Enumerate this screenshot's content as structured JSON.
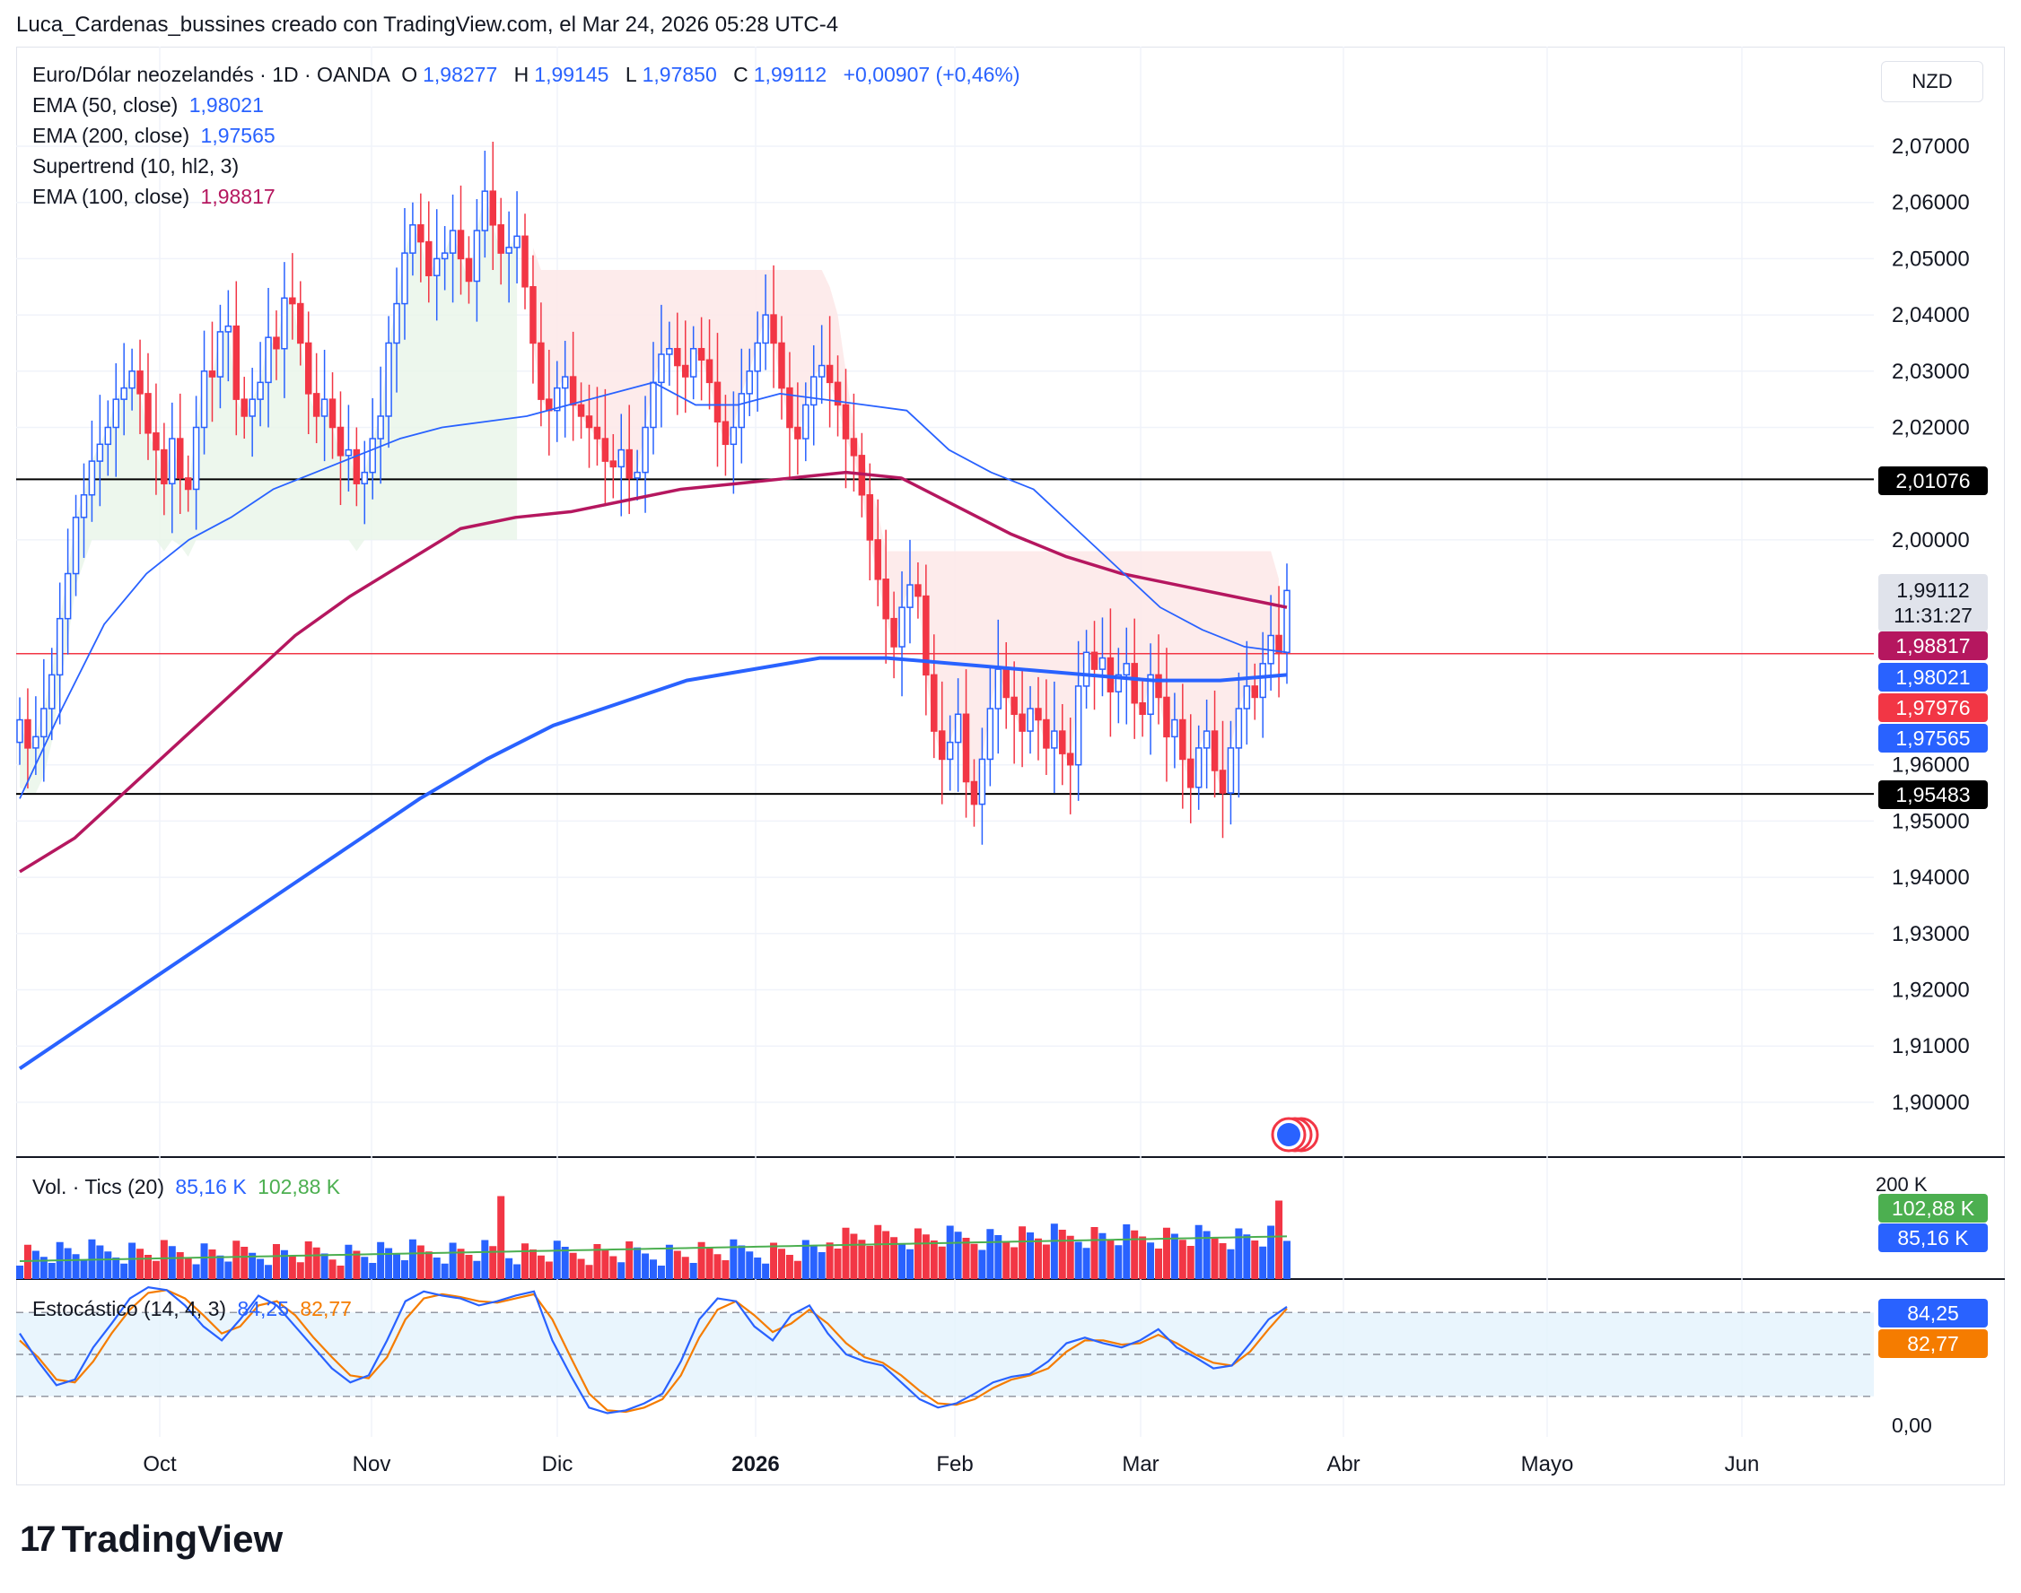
{
  "header": {
    "text": "Luca_Cardenas_bussines creado con TradingView.com, el Mar 24, 2026 05:28 UTC-4"
  },
  "currency": "NZD",
  "legend": {
    "symbol": "Euro/Dólar neozelandés · 1D · OANDA",
    "o_label": "O",
    "o_value": "1,98277",
    "h_label": "H",
    "h_value": "1,99145",
    "l_label": "L",
    "l_value": "1,97850",
    "c_label": "C",
    "c_value": "1,99112",
    "change": "+0,00907 (+0,46%)",
    "ema50_label": "EMA (50, close)",
    "ema50_value": "1,98021",
    "ema200_label": "EMA (200, close)",
    "ema200_value": "1,97565",
    "supertrend_label": "Supertrend (10, hl2, 3)",
    "ema100_label": "EMA (100, close)",
    "ema100_value": "1,98817"
  },
  "volume_legend": {
    "label": "Vol. · Tics (20)",
    "v1": "85,16 K",
    "v2": "102,88 K"
  },
  "stoch_legend": {
    "label": "Estocástico (14, 4, 3)",
    "k": "84,25",
    "d": "82,77"
  },
  "price_labels": {
    "hline_top": "2,01076",
    "last": "1,99112",
    "countdown": "11:31:27",
    "ema100": "1,98817",
    "ema50": "1,98021",
    "level_red": "1,97976",
    "ema200": "1,97565",
    "hline_bottom": "1,95483"
  },
  "volume_scale": {
    "top": "200 K",
    "ma": "102,88 K",
    "last": "85,16 K"
  },
  "stoch_scale": {
    "k": "84,25",
    "d": "82,77",
    "zero": "0,00"
  },
  "brand": "TradingView",
  "colors": {
    "up": "#2962ff",
    "down": "#f23645",
    "ema50": "#2962ff",
    "ema200": "#2962ff",
    "ema100": "#b5175f",
    "st_up": "#e8f5e9",
    "st_down": "#fde8e8",
    "stoch_k": "#2962ff",
    "stoch_d": "#f57c00"
  },
  "chart_data": {
    "type": "candlestick",
    "y_ticks": [
      "2,07000",
      "2,06000",
      "2,05000",
      "2,04000",
      "2,03000",
      "2,02000",
      "2,00000",
      "1,96000",
      "1,95000",
      "1,94000",
      "1,93000",
      "1,92000",
      "1,91000",
      "1,90000"
    ],
    "y_tick_values": [
      2.07,
      2.06,
      2.05,
      2.04,
      2.03,
      2.02,
      2.0,
      1.96,
      1.95,
      1.94,
      1.93,
      1.92,
      1.91,
      1.9
    ],
    "x_ticks": [
      "Oct",
      "Nov",
      "Dic",
      "2026",
      "Feb",
      "Mar",
      "Abr",
      "Mayo",
      "Jun"
    ],
    "horizontal_lines": [
      2.01076,
      1.95483,
      1.97976
    ],
    "closes": [
      1.968,
      1.963,
      1.965,
      1.97,
      1.976,
      1.986,
      1.994,
      2.004,
      2.008,
      2.014,
      2.017,
      2.02,
      2.025,
      2.027,
      2.03,
      2.026,
      2.019,
      2.016,
      2.01,
      2.018,
      2.011,
      2.009,
      2.02,
      2.03,
      2.029,
      2.037,
      2.038,
      2.025,
      2.022,
      2.025,
      2.028,
      2.036,
      2.034,
      2.043,
      2.042,
      2.035,
      2.026,
      2.022,
      2.025,
      2.02,
      2.015,
      2.016,
      2.01,
      2.012,
      2.018,
      2.022,
      2.035,
      2.042,
      2.051,
      2.056,
      2.053,
      2.047,
      2.05,
      2.051,
      2.055,
      2.05,
      2.046,
      2.055,
      2.062,
      2.056,
      2.051,
      2.052,
      2.054,
      2.045,
      2.035,
      2.025,
      2.023,
      2.027,
      2.029,
      2.024,
      2.022,
      2.02,
      2.018,
      2.014,
      2.013,
      2.016,
      2.011,
      2.012,
      2.02,
      2.028,
      2.033,
      2.034,
      2.031,
      2.029,
      2.034,
      2.032,
      2.028,
      2.021,
      2.017,
      2.02,
      2.026,
      2.03,
      2.035,
      2.04,
      2.035,
      2.027,
      2.02,
      2.018,
      2.024,
      2.029,
      2.031,
      2.028,
      2.024,
      2.018,
      2.015,
      2.008,
      2.0,
      1.993,
      1.986,
      1.981,
      1.988,
      1.992,
      1.99,
      1.976,
      1.966,
      1.961,
      1.964,
      1.969,
      1.957,
      1.953,
      1.961,
      1.97,
      1.977,
      1.972,
      1.969,
      1.966,
      1.97,
      1.968,
      1.963,
      1.966,
      1.962,
      1.96,
      1.974,
      1.98,
      1.977,
      1.979,
      1.973,
      1.976,
      1.978,
      1.971,
      1.969,
      1.976,
      1.972,
      1.965,
      1.968,
      1.961,
      1.956,
      1.963,
      1.966,
      1.959,
      1.955,
      1.963,
      1.97,
      1.974,
      1.972,
      1.978,
      1.983,
      1.98,
      1.991
    ],
    "ema50": [
      1.954,
      1.97,
      1.985,
      1.994,
      2.0,
      2.004,
      2.009,
      2.012,
      2.015,
      2.018,
      2.02,
      2.021,
      2.022,
      2.024,
      2.026,
      2.028,
      2.024,
      2.024,
      2.026,
      2.025,
      2.024,
      2.023,
      2.016,
      2.012,
      2.009,
      2.002,
      1.995,
      1.988,
      1.984,
      1.981,
      1.98
    ],
    "ema100": [
      1.941,
      1.947,
      1.956,
      1.965,
      1.974,
      1.983,
      1.99,
      1.996,
      2.002,
      2.004,
      2.005,
      2.007,
      2.009,
      2.01,
      2.011,
      2.012,
      2.011,
      2.006,
      2.001,
      1.997,
      1.994,
      1.992,
      1.99,
      1.988
    ],
    "ema200": [
      1.906,
      1.914,
      1.922,
      1.93,
      1.938,
      1.946,
      1.954,
      1.961,
      1.967,
      1.971,
      1.975,
      1.977,
      1.979,
      1.979,
      1.978,
      1.977,
      1.976,
      1.975,
      1.975,
      1.976
    ],
    "volume_max": 200000,
    "stoch_k": [
      65,
      45,
      28,
      32,
      55,
      72,
      90,
      98,
      96,
      85,
      70,
      60,
      75,
      92,
      85,
      70,
      55,
      40,
      30,
      35,
      60,
      88,
      95,
      92,
      90,
      85,
      88,
      92,
      95,
      60,
      35,
      12,
      8,
      10,
      15,
      22,
      45,
      75,
      90,
      88,
      70,
      60,
      78,
      85,
      65,
      50,
      45,
      42,
      30,
      18,
      12,
      15,
      22,
      30,
      34,
      36,
      45,
      58,
      62,
      58,
      55,
      60,
      68,
      55,
      48,
      40,
      42,
      58,
      75,
      84
    ],
    "stoch_d": [
      60,
      48,
      32,
      30,
      45,
      65,
      82,
      94,
      96,
      90,
      78,
      65,
      70,
      85,
      88,
      78,
      62,
      48,
      35,
      33,
      48,
      75,
      90,
      93,
      91,
      88,
      87,
      90,
      93,
      75,
      48,
      22,
      10,
      9,
      12,
      18,
      35,
      62,
      82,
      88,
      78,
      66,
      72,
      82,
      72,
      58,
      48,
      44,
      35,
      24,
      15,
      14,
      18,
      26,
      32,
      35,
      40,
      52,
      60,
      60,
      57,
      58,
      64,
      58,
      50,
      44,
      42,
      52,
      68,
      82.77
    ]
  }
}
